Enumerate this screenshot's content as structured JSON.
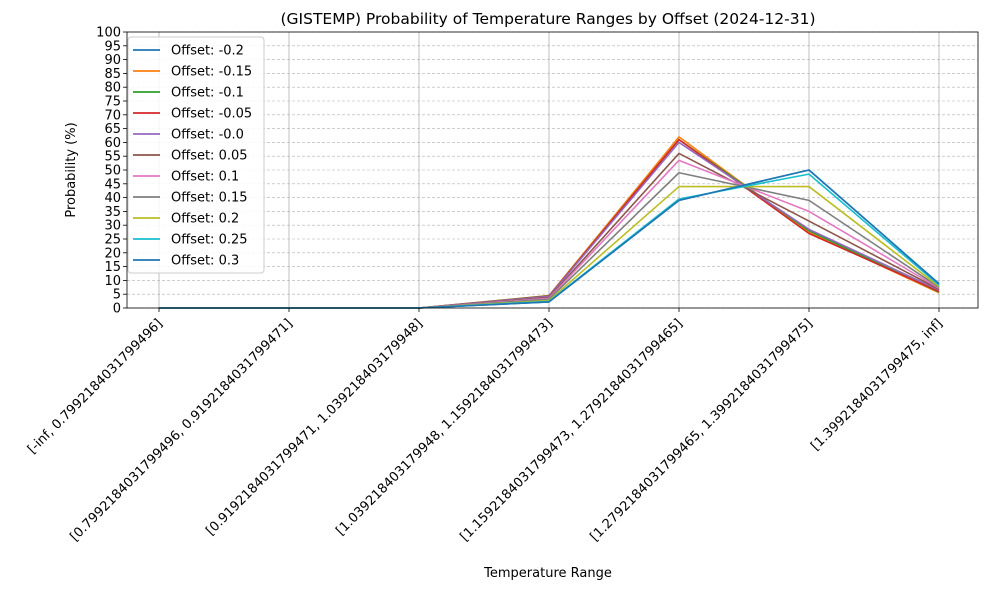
{
  "chart_data": {
    "type": "line",
    "title": "(GISTEMP) Probability of Temperature Ranges by Offset (2024-12-31)",
    "xlabel": "Temperature Range",
    "ylabel": "Probability (%)",
    "ylim": [
      0,
      100
    ],
    "yticks": [
      "0",
      "5",
      "10",
      "15",
      "20",
      "25",
      "30",
      "35",
      "40",
      "45",
      "50",
      "55",
      "60",
      "65",
      "70",
      "75",
      "80",
      "85",
      "90",
      "95",
      "100"
    ],
    "grid": true,
    "legend_position": "top-left",
    "categories": [
      "[-inf, 0.7992184031799496]",
      "[0.7992184031799496, 0.9192184031799471]",
      "[0.9192184031799471, 1.039218403179948]",
      "[1.039218403179948, 1.1592184031799473]",
      "[1.1592184031799473, 1.2792184031799465]",
      "[1.2792184031799465, 1.3992184031799475]",
      "[1.3992184031799475, inf]"
    ],
    "series": [
      {
        "name": "Offset: -0.2",
        "color": "#1f77b4",
        "values": [
          0,
          0,
          0,
          2.2,
          39,
          50,
          8.8
        ]
      },
      {
        "name": "Offset: -0.15",
        "color": "#ff7f0e",
        "values": [
          0,
          0,
          0,
          4.5,
          62,
          27.5,
          5.5
        ]
      },
      {
        "name": "Offset: -0.1",
        "color": "#2ca02c",
        "values": [
          0,
          0,
          0,
          4.4,
          61,
          28,
          5.8
        ]
      },
      {
        "name": "Offset: -0.05",
        "color": "#d62728",
        "values": [
          0,
          0,
          0,
          4.3,
          61,
          27,
          6
        ]
      },
      {
        "name": "Offset: -0.0",
        "color": "#9467bd",
        "values": [
          0,
          0,
          0,
          4.2,
          60,
          28.5,
          6.5
        ]
      },
      {
        "name": "Offset: 0.05",
        "color": "#8c564b",
        "values": [
          0,
          0,
          0,
          3.8,
          56,
          31.5,
          6.8
        ]
      },
      {
        "name": "Offset: 0.1",
        "color": "#e377c2",
        "values": [
          0,
          0,
          0,
          3.5,
          53.5,
          35,
          7.2
        ]
      },
      {
        "name": "Offset: 0.15",
        "color": "#7f7f7f",
        "values": [
          0,
          0,
          0,
          3.2,
          49,
          39,
          7.5
        ]
      },
      {
        "name": "Offset: 0.2",
        "color": "#bcbd22",
        "values": [
          0,
          0,
          0,
          2.7,
          44,
          44,
          7.8
        ]
      },
      {
        "name": "Offset: 0.25",
        "color": "#17becf",
        "values": [
          0,
          0,
          0,
          2.4,
          39.5,
          48.5,
          8.3
        ]
      },
      {
        "name": "Offset: 0.3",
        "color": "#1f77b4",
        "values": [
          0,
          0,
          0,
          2.2,
          39,
          50,
          8.8
        ]
      }
    ]
  }
}
